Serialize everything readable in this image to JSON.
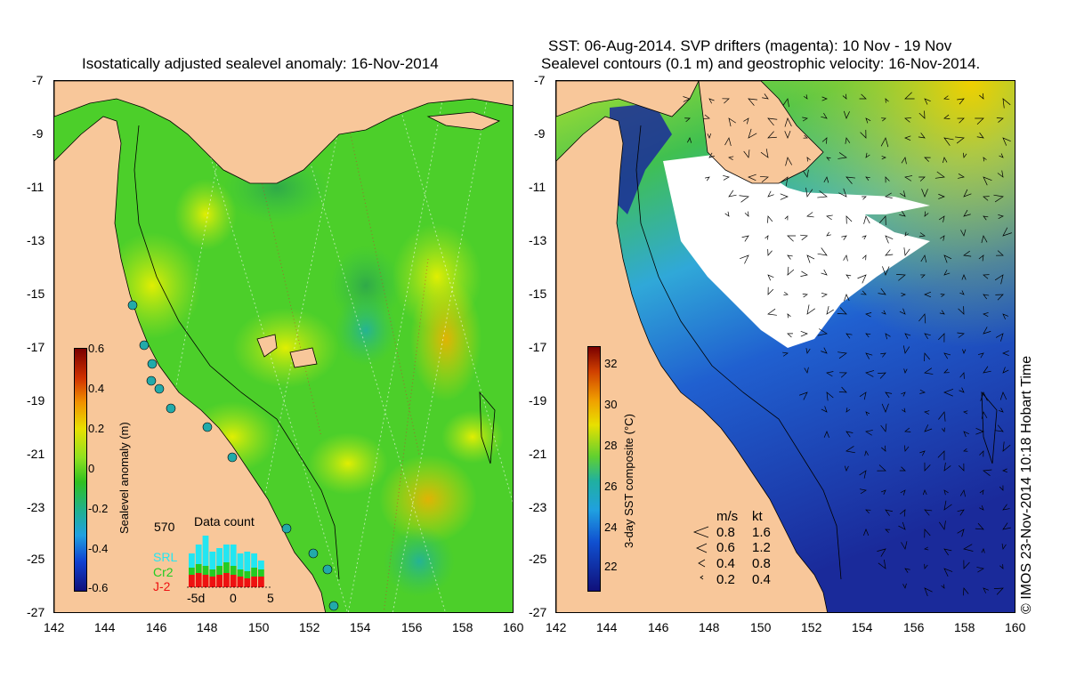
{
  "left_panel": {
    "title": "Isostatically adjusted sealevel anomaly: 16-Nov-2014",
    "colorbar": {
      "label": "Sealevel anomaly (m)",
      "ticks": [
        "0.6",
        "0.4",
        "0.2",
        "0",
        "-0.2",
        "-0.4",
        "-0.6"
      ],
      "range": [
        -0.6,
        0.6
      ]
    },
    "data_count": {
      "title": "Data count",
      "max_label": "570",
      "series": [
        {
          "name": "SRL",
          "color": "#22e6f2"
        },
        {
          "name": "Cr2",
          "color": "#22cc22"
        },
        {
          "name": "J-2",
          "color": "#ee1111"
        }
      ],
      "x_ticks": [
        "-5d",
        "0",
        "5"
      ]
    }
  },
  "right_panel": {
    "title_line1": "SST: 06-Aug-2014. SVP drifters (magenta): 10 Nov - 19 Nov",
    "title_line2": "Sealevel contours (0.1 m) and geostrophic velocity: 16-Nov-2014.",
    "colorbar": {
      "label": "3-day SST composite (°C)",
      "ticks": [
        "32",
        "30",
        "28",
        "26",
        "24",
        "22"
      ],
      "range": [
        21,
        33
      ]
    },
    "velocity_legend": {
      "header_ms": "m/s",
      "header_kt": "kt",
      "rows": [
        {
          "ms": "0.8",
          "kt": "1.6"
        },
        {
          "ms": "0.6",
          "kt": "1.2"
        },
        {
          "ms": "0.4",
          "kt": "0.8"
        },
        {
          "ms": "0.2",
          "kt": "0.4"
        }
      ]
    }
  },
  "axes": {
    "y_ticks": [
      "-7",
      "-9",
      "-11",
      "-13",
      "-15",
      "-17",
      "-19",
      "-21",
      "-23",
      "-25",
      "-27"
    ],
    "x_ticks": [
      "142",
      "144",
      "146",
      "148",
      "150",
      "152",
      "154",
      "156",
      "158",
      "160"
    ],
    "lon_range": [
      142,
      160
    ],
    "lat_range": [
      -27,
      -7
    ]
  },
  "credit": "© IMOS 23-Nov-2014 10:18 Hobart Time",
  "colors": {
    "land": "#f8c79a",
    "sla_base": "#4ccf2a",
    "sst_warm": "#2fb4e0",
    "sst_cold": "#1a2a9a",
    "cloud": "#ffffff"
  }
}
